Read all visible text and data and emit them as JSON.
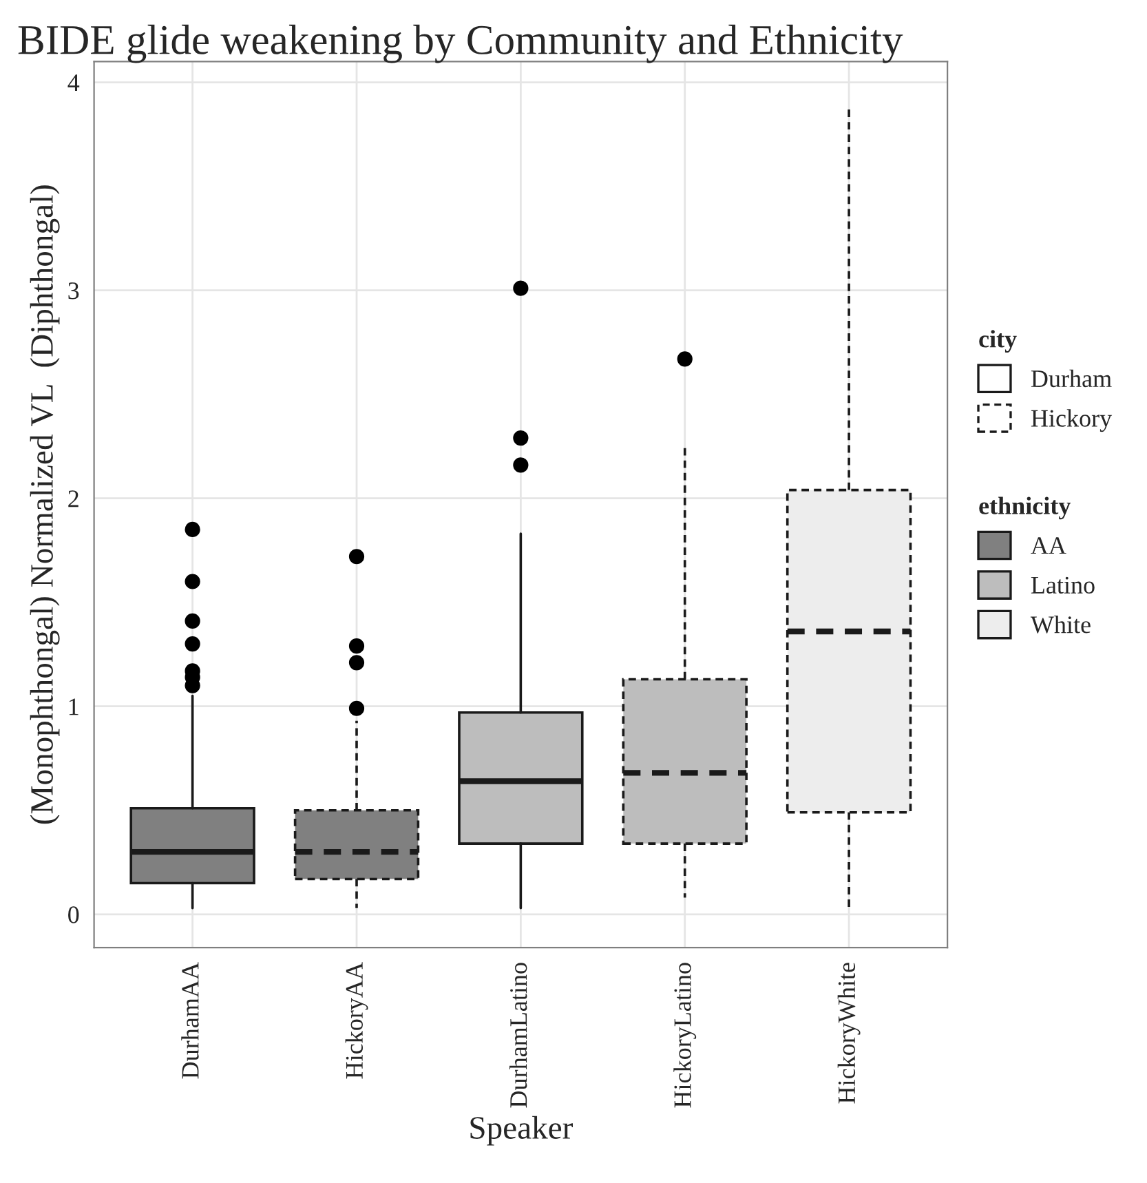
{
  "chart_data": {
    "type": "box",
    "title": "BIDE glide weakening by Community and Ethnicity",
    "xlabel": "Speaker",
    "ylabel": "(Monophthongal) Normalized VL  (Diphthongal)",
    "categories": [
      "DurhamAA",
      "HickoryAA",
      "DurhamLatino",
      "HickoryLatino",
      "HickoryWhite"
    ],
    "series": [
      {
        "color": "#808080",
        "line_style": "solid",
        "boxes": [
          {
            "low": 0.03,
            "q1": 0.15,
            "median": 0.3,
            "q3": 0.51,
            "high": 1.05,
            "outliers": [
              1.85,
              1.6,
              1.41,
              1.3,
              1.17,
              1.14,
              1.1
            ]
          },
          null,
          null,
          null,
          null
        ]
      },
      {
        "color": "#808080",
        "line_style": "dashed",
        "boxes": [
          null,
          {
            "low": 0.03,
            "q1": 0.17,
            "median": 0.3,
            "q3": 0.5,
            "high": 0.93,
            "outliers": [
              1.72,
              1.29,
              1.21,
              0.99
            ]
          },
          null,
          null,
          null
        ]
      },
      {
        "color": "#bdbdbd",
        "line_style": "solid",
        "boxes": [
          null,
          null,
          {
            "low": 0.03,
            "q1": 0.34,
            "median": 0.64,
            "q3": 0.97,
            "high": 1.83,
            "outliers": [
              3.01,
              2.29,
              2.16
            ]
          },
          null,
          null
        ]
      },
      {
        "color": "#bdbdbd",
        "line_style": "dashed",
        "boxes": [
          null,
          null,
          null,
          {
            "low": 0.08,
            "q1": 0.34,
            "median": 0.68,
            "q3": 1.13,
            "high": 2.26,
            "outliers": [
              2.67
            ]
          },
          null
        ]
      },
      {
        "color": "#ededed",
        "line_style": "dashed",
        "boxes": [
          null,
          null,
          null,
          null,
          {
            "low": 0.02,
            "q1": 0.49,
            "median": 1.36,
            "q3": 2.04,
            "high": 3.88
          }
        ]
      },
      {
        "name": "Durham",
        "line_style": "solid",
        "boxes": [
          null,
          null,
          null,
          null,
          null
        ]
      },
      {
        "name": "Hickory",
        "line_style": "dashed",
        "boxes": [
          null,
          null,
          null,
          null,
          null
        ]
      },
      {
        "name": "AA",
        "color": "#808080",
        "boxes": [
          null,
          null,
          null,
          null,
          null
        ]
      },
      {
        "name": "Latino",
        "color": "#bdbdbd",
        "boxes": [
          null,
          null,
          null,
          null,
          null
        ]
      },
      {
        "name": "White",
        "color": "#ededed",
        "boxes": [
          null,
          null,
          null,
          null,
          null
        ]
      }
    ],
    "legend_title": [
      "city",
      "ethnicity"
    ],
    "legend": "right",
    "ylim": [
      -0.16,
      4.1
    ],
    "yticks": [
      0,
      1,
      2,
      3,
      4
    ],
    "grid": true,
    "marker": "circle"
  }
}
